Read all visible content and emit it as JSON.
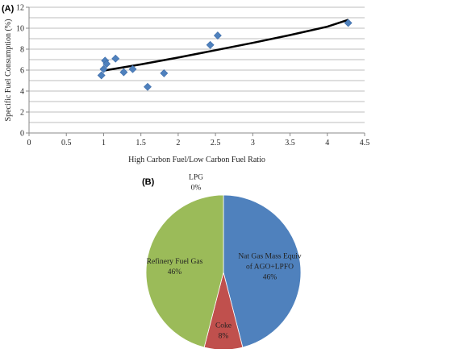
{
  "chart_data": [
    {
      "panel": "(A)",
      "type": "scatter",
      "xlabel": "High Carbon Fuel/Low Carbon Fuel Ratio",
      "ylabel": "Specific Fuel Consumption (%)",
      "xlim": [
        0,
        4.5
      ],
      "ylim": [
        0,
        12
      ],
      "xticks": [
        "0",
        "0.5",
        "1",
        "1.5",
        "2",
        "2.5",
        "3",
        "3.5",
        "4",
        "4.5"
      ],
      "yticks": [
        "0",
        "2",
        "4",
        "6",
        "8",
        "10",
        "12"
      ],
      "grid": "horizontal",
      "marker_color": "#4f81bd",
      "trendline_color": "#000000",
      "points": [
        {
          "x": 0.97,
          "y": 5.5
        },
        {
          "x": 1.0,
          "y": 6.1
        },
        {
          "x": 1.02,
          "y": 6.9
        },
        {
          "x": 1.04,
          "y": 6.6
        },
        {
          "x": 1.16,
          "y": 7.1
        },
        {
          "x": 1.27,
          "y": 5.8
        },
        {
          "x": 1.39,
          "y": 6.1
        },
        {
          "x": 1.59,
          "y": 4.4
        },
        {
          "x": 1.81,
          "y": 5.7
        },
        {
          "x": 2.43,
          "y": 8.4
        },
        {
          "x": 2.53,
          "y": 9.3
        },
        {
          "x": 4.28,
          "y": 10.5
        }
      ],
      "trendline": [
        {
          "x": 1.0,
          "y": 5.95
        },
        {
          "x": 1.5,
          "y": 6.55
        },
        {
          "x": 2.0,
          "y": 7.2
        },
        {
          "x": 2.5,
          "y": 7.9
        },
        {
          "x": 3.0,
          "y": 8.6
        },
        {
          "x": 3.5,
          "y": 9.35
        },
        {
          "x": 4.0,
          "y": 10.15
        },
        {
          "x": 4.28,
          "y": 10.8
        }
      ]
    },
    {
      "panel": "(B)",
      "type": "pie",
      "slices": [
        {
          "label_lines": [
            "Nat Gas Mass Equiv",
            "of AGO+LPFO",
            "46%"
          ],
          "value": 46,
          "color": "#4f81bd"
        },
        {
          "label_lines": [
            "Coke",
            "8%"
          ],
          "value": 8,
          "color": "#c0504d"
        },
        {
          "label_lines": [
            "Refinery Fuel Gas",
            "46%"
          ],
          "value": 46,
          "color": "#9bbb59"
        },
        {
          "label_lines": [
            "LPG",
            "0%"
          ],
          "value": 0,
          "color": "#8064a2"
        }
      ]
    }
  ]
}
